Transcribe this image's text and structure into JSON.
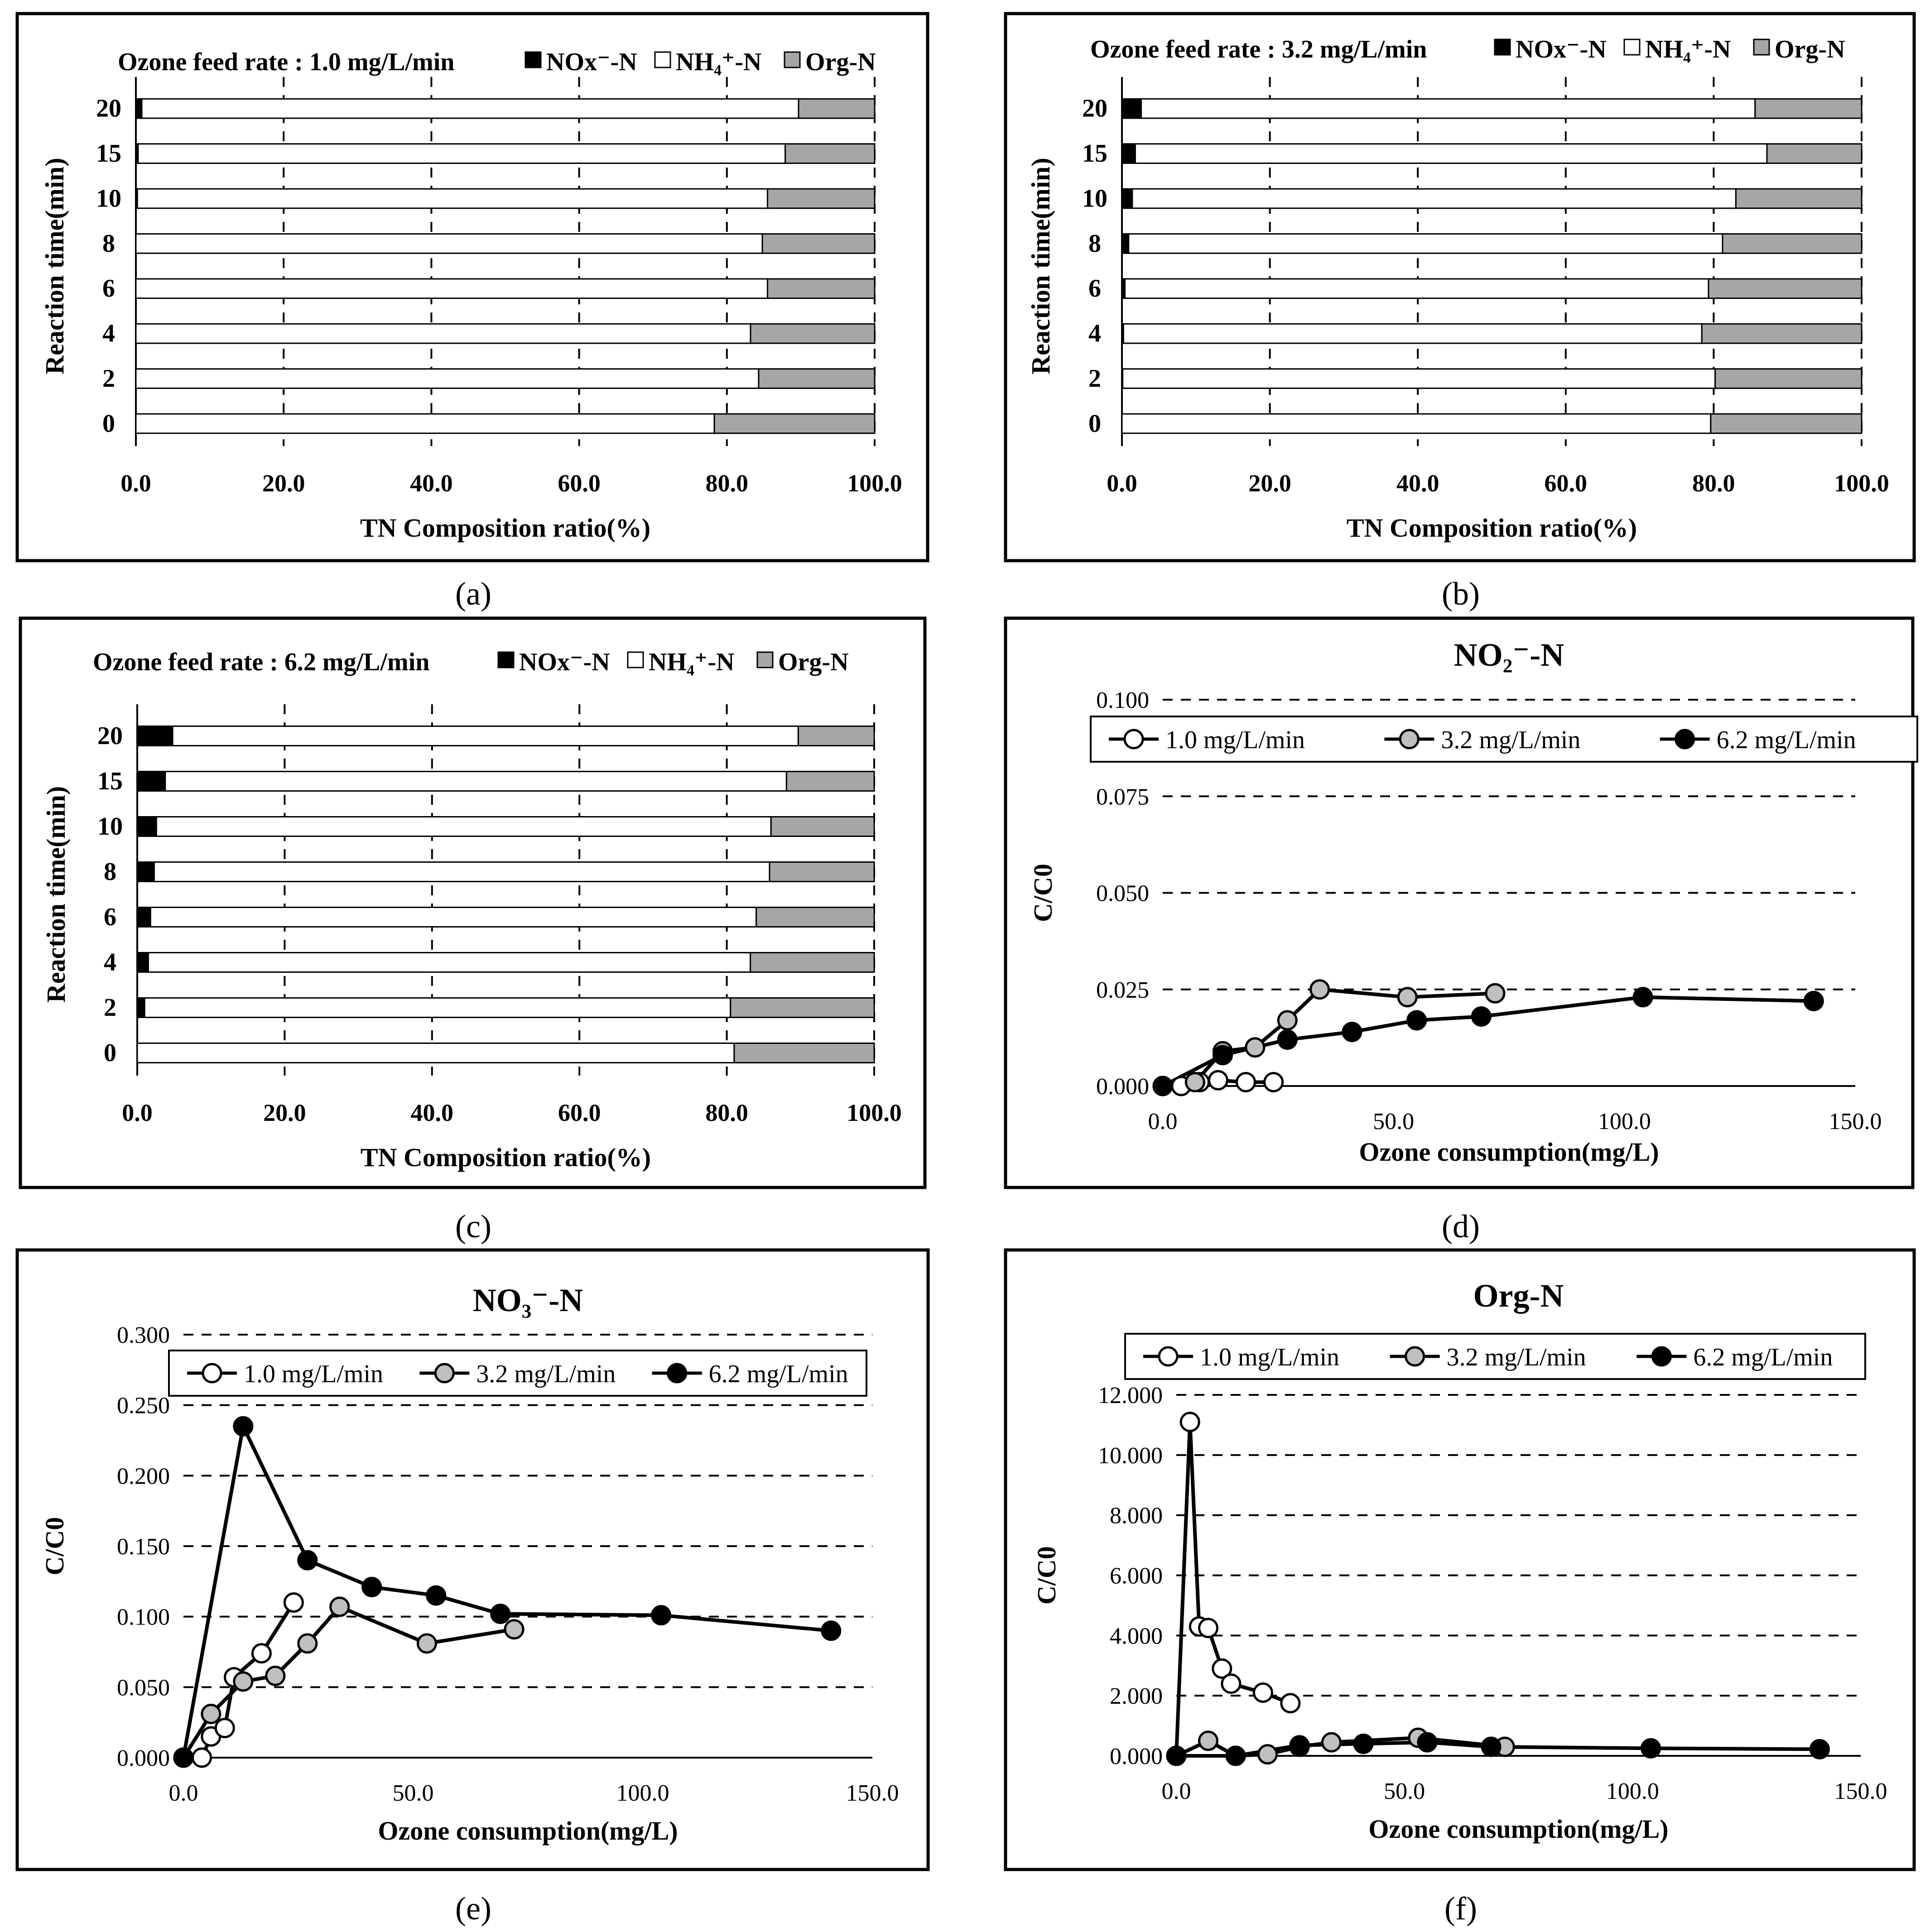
{
  "figure": {
    "captions": [
      "(a)",
      "(b)",
      "(c)",
      "(d)",
      "(e)",
      "(f)"
    ]
  },
  "colors": {
    "nox": "#000000",
    "nh4": "#ffffff",
    "orgn": "#a6a6a6",
    "marker_1_0": "#ffffff",
    "marker_3_2": "#bfbfbf",
    "marker_6_2": "#000000",
    "line": "#000000"
  },
  "chart_data": [
    {
      "id": "a",
      "type": "bar",
      "orientation": "horizontal",
      "stacked": true,
      "title": "Ozone feed rate : 1.0 mg/L/min",
      "xlabel": "TN Composition ratio(%)",
      "ylabel": "Reaction time(min)",
      "xlim": [
        0,
        100
      ],
      "xticks": [
        "0.0",
        "20.0",
        "40.0",
        "60.0",
        "80.0",
        "100.0"
      ],
      "categories": [
        "0",
        "2",
        "4",
        "6",
        "8",
        "10",
        "15",
        "20"
      ],
      "legend": [
        "NOx⁻-N",
        "NH₄⁺-N",
        "Org-N"
      ],
      "series": [
        {
          "name": "NOx⁻-N",
          "values": [
            0.0,
            0.0,
            0.0,
            0.0,
            0.0,
            0.2,
            0.3,
            0.8
          ]
        },
        {
          "name": "NH₄⁺-N",
          "values": [
            78.3,
            84.3,
            83.2,
            85.5,
            84.8,
            85.3,
            87.6,
            88.9
          ]
        },
        {
          "name": "Org-N",
          "values": [
            21.7,
            15.7,
            16.8,
            14.5,
            15.2,
            14.5,
            12.1,
            10.3
          ]
        }
      ]
    },
    {
      "id": "b",
      "type": "bar",
      "orientation": "horizontal",
      "stacked": true,
      "title": "Ozone feed rate : 3.2 mg/L/min",
      "xlabel": "TN Composition ratio(%)",
      "ylabel": "Reaction time(min)",
      "xlim": [
        0,
        100
      ],
      "xticks": [
        "0.0",
        "20.0",
        "40.0",
        "60.0",
        "80.0",
        "100.0"
      ],
      "categories": [
        "0",
        "2",
        "4",
        "6",
        "8",
        "10",
        "15",
        "20"
      ],
      "legend": [
        "NOx⁻-N",
        "NH₄⁺-N",
        "Org-N"
      ],
      "series": [
        {
          "name": "NOx⁻-N",
          "values": [
            0.0,
            0.1,
            0.2,
            0.4,
            0.9,
            1.4,
            1.8,
            2.6
          ]
        },
        {
          "name": "NH₄⁺-N",
          "values": [
            79.6,
            80.1,
            78.2,
            78.9,
            80.3,
            81.6,
            85.4,
            83.0
          ]
        },
        {
          "name": "Org-N",
          "values": [
            20.4,
            19.8,
            21.6,
            20.7,
            18.8,
            17.0,
            12.8,
            14.4
          ]
        }
      ]
    },
    {
      "id": "c",
      "type": "bar",
      "orientation": "horizontal",
      "stacked": true,
      "title": "Ozone feed rate : 6.2 mg/L/min",
      "xlabel": "TN Composition ratio(%)",
      "ylabel": "Reaction time(min)",
      "xlim": [
        0,
        100
      ],
      "xticks": [
        "0.0",
        "20.0",
        "40.0",
        "60.0",
        "80.0",
        "100.0"
      ],
      "categories": [
        "0",
        "2",
        "4",
        "6",
        "8",
        "10",
        "15",
        "20"
      ],
      "legend": [
        "NOx⁻-N",
        "NH₄⁺-N",
        "Org-N"
      ],
      "series": [
        {
          "name": "NOx⁻-N",
          "values": [
            0.0,
            1.0,
            1.5,
            1.8,
            2.3,
            2.6,
            3.8,
            4.8
          ]
        },
        {
          "name": "NH₄⁺-N",
          "values": [
            81.0,
            79.5,
            81.7,
            82.2,
            83.5,
            83.4,
            84.3,
            84.9
          ]
        },
        {
          "name": "Org-N",
          "values": [
            19.0,
            19.5,
            16.8,
            16.0,
            14.2,
            14.0,
            11.9,
            10.3
          ]
        }
      ]
    },
    {
      "id": "d",
      "type": "line",
      "title": "NO₂⁻-N",
      "xlabel": "Ozone consumption(mg/L)",
      "ylabel": "C/C0",
      "xlim": [
        0,
        150
      ],
      "ylim": [
        0,
        0.1
      ],
      "xticks": [
        "0.0",
        "50.0",
        "100.0",
        "150.0"
      ],
      "yticks": [
        "0.000",
        "0.025",
        "0.050",
        "0.075",
        "0.100"
      ],
      "series": [
        {
          "name": "1.0 mg/L/min",
          "x": [
            0,
            4,
            8,
            12,
            18,
            24
          ],
          "y": [
            0.0,
            0.0,
            0.001,
            0.0015,
            0.001,
            0.001
          ]
        },
        {
          "name": "3.2 mg/L/min",
          "x": [
            0,
            7,
            13,
            20,
            27,
            34,
            53,
            72
          ],
          "y": [
            0.0,
            0.001,
            0.009,
            0.01,
            0.017,
            0.025,
            0.023,
            0.024
          ]
        },
        {
          "name": "6.2 mg/L/min",
          "x": [
            0,
            13,
            27,
            41,
            55,
            69,
            104,
            141
          ],
          "y": [
            0.0,
            0.008,
            0.012,
            0.014,
            0.017,
            0.018,
            0.023,
            0.022
          ]
        }
      ]
    },
    {
      "id": "e",
      "type": "line",
      "title": "NO₃⁻-N",
      "xlabel": "Ozone consumption(mg/L)",
      "ylabel": "C/C0",
      "xlim": [
        0,
        150
      ],
      "ylim": [
        0,
        0.3
      ],
      "xticks": [
        "0.0",
        "50.0",
        "100.0",
        "150.0"
      ],
      "yticks": [
        "0.000",
        "0.050",
        "0.100",
        "0.150",
        "0.200",
        "0.250",
        "0.300"
      ],
      "series": [
        {
          "name": "1.0 mg/L/min",
          "x": [
            0,
            4,
            6,
            9,
            11,
            17,
            24
          ],
          "y": [
            0.0,
            0.0,
            0.015,
            0.021,
            0.057,
            0.074,
            0.11
          ]
        },
        {
          "name": "3.2 mg/L/min",
          "x": [
            0,
            6,
            13,
            20,
            27,
            34,
            53,
            72
          ],
          "y": [
            0.0,
            0.031,
            0.054,
            0.058,
            0.081,
            0.107,
            0.081,
            0.091
          ]
        },
        {
          "name": "6.2 mg/L/min",
          "x": [
            0,
            13,
            27,
            41,
            55,
            69,
            104,
            141
          ],
          "y": [
            0.0,
            0.235,
            0.14,
            0.121,
            0.115,
            0.102,
            0.101,
            0.09
          ]
        }
      ]
    },
    {
      "id": "f",
      "type": "line",
      "title": "Org-N",
      "xlabel": "Ozone consumption(mg/L)",
      "ylabel": "C/C0",
      "xlim": [
        0,
        150
      ],
      "ylim": [
        0,
        12
      ],
      "xticks": [
        "0.0",
        "50.0",
        "100.0",
        "150.0"
      ],
      "yticks": [
        "0.000",
        "2.000",
        "4.000",
        "6.000",
        "8.000",
        "10.000",
        "12.000"
      ],
      "series": [
        {
          "name": "1.0 mg/L/min",
          "x": [
            0,
            3,
            5,
            7,
            10,
            12,
            19,
            25
          ],
          "y": [
            0.0,
            11.1,
            4.3,
            4.25,
            2.9,
            2.4,
            2.1,
            1.75
          ]
        },
        {
          "name": "3.2 mg/L/min",
          "x": [
            0,
            7,
            13,
            20,
            27,
            34,
            53,
            72
          ],
          "y": [
            0.0,
            0.5,
            0.0,
            0.05,
            0.3,
            0.45,
            0.6,
            0.3
          ]
        },
        {
          "name": "6.2 mg/L/min",
          "x": [
            0,
            13,
            27,
            41,
            55,
            69,
            104,
            141
          ],
          "y": [
            0.0,
            0.0,
            0.35,
            0.4,
            0.45,
            0.3,
            0.25,
            0.22
          ]
        }
      ]
    }
  ]
}
